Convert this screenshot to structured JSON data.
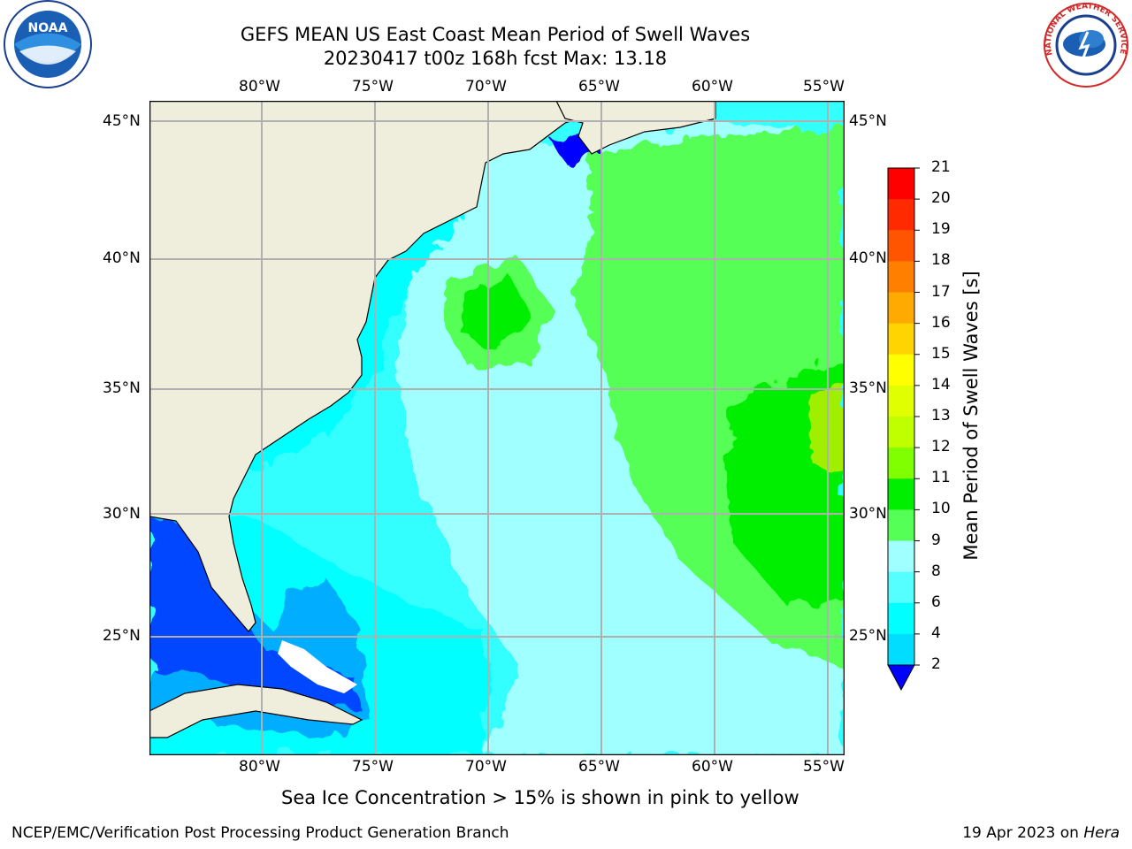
{
  "title": {
    "line1": "GEFS MEAN US East Coast Mean Period of Swell Waves",
    "line2": "20230417 t00z 168h fcst   Max: 13.18"
  },
  "logos": {
    "noaa_text": "NOAA",
    "nws_text": "NATIONAL WEATHER SERVICE"
  },
  "map": {
    "lon_labels": [
      "80°W",
      "75°W",
      "70°W",
      "65°W",
      "60°W",
      "55°W"
    ],
    "lat_labels": [
      "45°N",
      "40°N",
      "35°N",
      "30°N",
      "25°N"
    ],
    "land_color": "#efeedd",
    "gridline_color": "#b0b0b0"
  },
  "colorbar": {
    "label": "Mean Period of Swell Waves [s]",
    "ticks": [
      "21",
      "20",
      "19",
      "18",
      "17",
      "16",
      "15",
      "14",
      "13",
      "12",
      "11",
      "10",
      "9",
      "8",
      "6",
      "4",
      "2"
    ],
    "colors": [
      "#ff0000",
      "#ff2a00",
      "#ff5500",
      "#ff7f00",
      "#ffaa00",
      "#ffd400",
      "#ffff00",
      "#e0ff00",
      "#c0ff00",
      "#80ff00",
      "#00ee00",
      "#55ff55",
      "#a0ffff",
      "#55ffff",
      "#00ffff",
      "#00ddff",
      "#0077ff"
    ],
    "under_color": "#0000ff"
  },
  "ice_note": "Sea Ice Concentration > 15% is shown in pink to yellow",
  "footer": {
    "left": "NCEP/EMC/Verification Post Processing Product Generation Branch",
    "date": "19 Apr 2023 on ",
    "machine": "Hera"
  }
}
